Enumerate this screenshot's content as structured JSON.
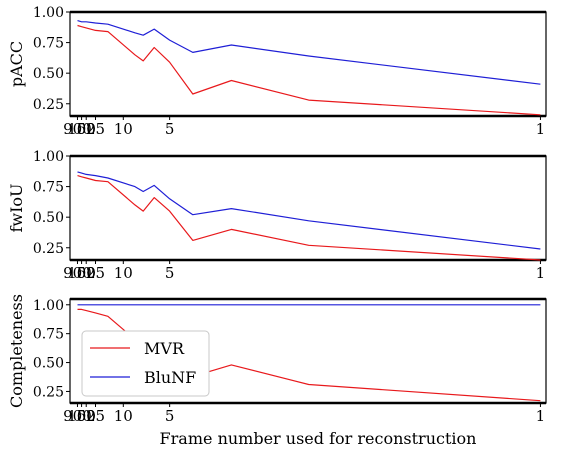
{
  "figure": {
    "xlabel": "Frame number used for reconstruction"
  },
  "legend": {
    "placement": "lower-left of bottom panel",
    "entries": [
      {
        "label": "MVR",
        "color": "#e8191c"
      },
      {
        "label": "BluNF",
        "color": "#1f1fd6"
      }
    ]
  },
  "chart_data": [
    {
      "type": "line",
      "ylabel": "pACC",
      "x_scale": "reciprocal (frame numbers decrease left to right)",
      "x_ticks": [
        "900",
        "100",
        "50",
        "25",
        "10",
        "5",
        "1"
      ],
      "y_ticks": [
        "1.00",
        "0.75",
        "0.50",
        "0.25"
      ],
      "ylim": [
        0.15,
        1.0
      ],
      "grid": false,
      "x": [
        900,
        100,
        50,
        25,
        15,
        8,
        7,
        6,
        5,
        4,
        3,
        2,
        1
      ],
      "series": [
        {
          "name": "MVR",
          "color": "#e8191c",
          "values": [
            0.89,
            0.88,
            0.87,
            0.85,
            0.84,
            0.65,
            0.6,
            0.71,
            0.59,
            0.33,
            0.44,
            0.28,
            0.16
          ]
        },
        {
          "name": "BluNF",
          "color": "#1f1fd6",
          "values": [
            0.93,
            0.92,
            0.92,
            0.91,
            0.9,
            0.83,
            0.81,
            0.86,
            0.77,
            0.67,
            0.73,
            0.64,
            0.41
          ]
        }
      ]
    },
    {
      "type": "line",
      "ylabel": "fwIoU",
      "x_scale": "reciprocal (frame numbers decrease left to right)",
      "x_ticks": [
        "900",
        "100",
        "50",
        "25",
        "10",
        "5",
        "1"
      ],
      "y_ticks": [
        "1.00",
        "0.75",
        "0.50",
        "0.25"
      ],
      "ylim": [
        0.15,
        1.0
      ],
      "grid": false,
      "x": [
        900,
        100,
        50,
        25,
        15,
        8,
        7,
        6,
        5,
        4,
        3,
        2,
        1
      ],
      "series": [
        {
          "name": "MVR",
          "color": "#e8191c",
          "values": [
            0.84,
            0.83,
            0.82,
            0.8,
            0.79,
            0.6,
            0.55,
            0.66,
            0.55,
            0.31,
            0.4,
            0.27,
            0.15
          ]
        },
        {
          "name": "BluNF",
          "color": "#1f1fd6",
          "values": [
            0.87,
            0.86,
            0.85,
            0.84,
            0.82,
            0.75,
            0.71,
            0.76,
            0.65,
            0.52,
            0.57,
            0.47,
            0.24
          ]
        }
      ]
    },
    {
      "type": "line",
      "ylabel": "Completeness",
      "x_scale": "reciprocal (frame numbers decrease left to right)",
      "x_ticks": [
        "900",
        "100",
        "50",
        "25",
        "10",
        "5",
        "1"
      ],
      "y_ticks": [
        "1.00",
        "0.75",
        "0.50",
        "0.25"
      ],
      "ylim": [
        0.15,
        1.05
      ],
      "grid": false,
      "x": [
        900,
        100,
        50,
        25,
        15,
        8,
        7,
        6,
        5,
        4,
        3,
        2,
        1
      ],
      "series": [
        {
          "name": "MVR",
          "color": "#e8191c",
          "values": [
            0.96,
            0.96,
            0.95,
            0.93,
            0.9,
            0.7,
            0.66,
            0.77,
            0.62,
            0.38,
            0.48,
            0.31,
            0.17
          ]
        },
        {
          "name": "BluNF",
          "color": "#1f1fd6",
          "values": [
            1.0,
            1.0,
            1.0,
            1.0,
            1.0,
            1.0,
            1.0,
            1.0,
            1.0,
            1.0,
            1.0,
            1.0,
            1.0
          ]
        }
      ]
    }
  ]
}
